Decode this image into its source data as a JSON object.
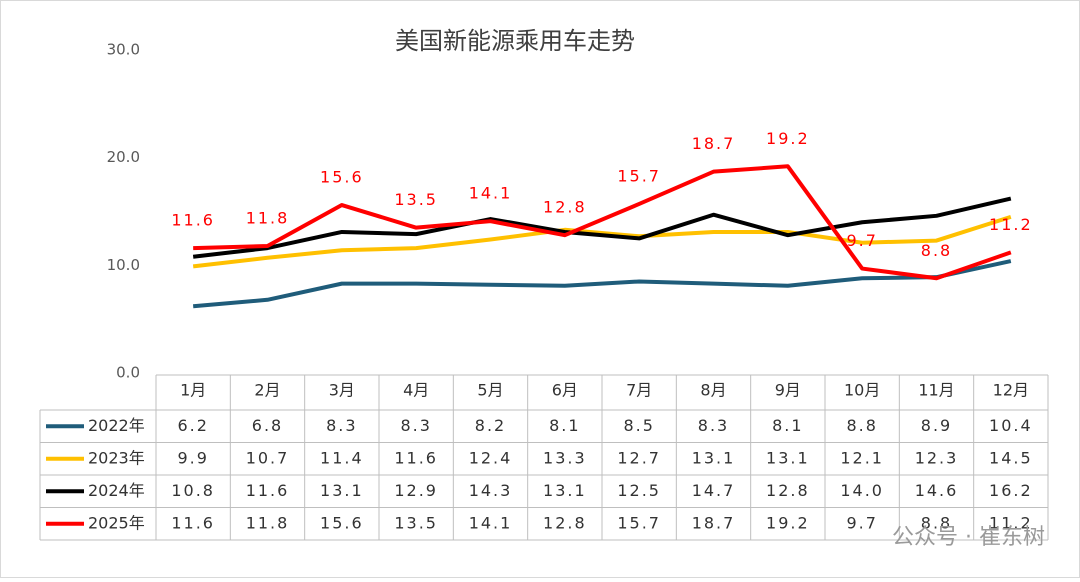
{
  "chart_data": {
    "type": "line",
    "title": "美国新能源乘用车走势",
    "categories": [
      "1月",
      "2月",
      "3月",
      "4月",
      "5月",
      "6月",
      "7月",
      "8月",
      "9月",
      "10月",
      "11月",
      "12月"
    ],
    "ylim": [
      0,
      30
    ],
    "yticks": [
      {
        "value": 0,
        "label": "0.0"
      },
      {
        "value": 10,
        "label": "10.0"
      },
      {
        "value": 20,
        "label": "20.0"
      },
      {
        "value": 30,
        "label": "30.0"
      }
    ],
    "grid": false,
    "data_labels_series": 3,
    "series": [
      {
        "name": "2022年",
        "color": "#1f5c7a",
        "values": [
          6.2,
          6.8,
          8.3,
          8.3,
          8.2,
          8.1,
          8.5,
          8.3,
          8.1,
          8.8,
          8.9,
          10.4
        ],
        "value_labels": [
          "6.2",
          "6.8",
          "8.3",
          "8.3",
          "8.2",
          "8.1",
          "8.5",
          "8.3",
          "8.1",
          "8.8",
          "8.9",
          "10.4"
        ]
      },
      {
        "name": "2023年",
        "color": "#ffc000",
        "values": [
          9.9,
          10.7,
          11.4,
          11.6,
          12.4,
          13.3,
          12.7,
          13.1,
          13.1,
          12.1,
          12.3,
          14.5
        ],
        "value_labels": [
          "9.9",
          "10.7",
          "11.4",
          "11.6",
          "12.4",
          "13.3",
          "12.7",
          "13.1",
          "13.1",
          "12.1",
          "12.3",
          "14.5"
        ]
      },
      {
        "name": "2024年",
        "color": "#000000",
        "values": [
          10.8,
          11.6,
          13.1,
          12.9,
          14.3,
          13.1,
          12.5,
          14.7,
          12.8,
          14.0,
          14.6,
          16.2
        ],
        "value_labels": [
          "10.8",
          "11.6",
          "13.1",
          "12.9",
          "14.3",
          "13.1",
          "12.5",
          "14.7",
          "12.8",
          "14.0",
          "14.6",
          "16.2"
        ]
      },
      {
        "name": "2025年",
        "color": "#ff0000",
        "values": [
          11.6,
          11.8,
          15.6,
          13.5,
          14.1,
          12.8,
          15.7,
          18.7,
          19.2,
          9.7,
          8.8,
          11.2
        ],
        "value_labels": [
          "11.6",
          "11.8",
          "15.6",
          "13.5",
          "14.1",
          "12.8",
          "15.7",
          "18.7",
          "19.2",
          "9.7",
          "8.8",
          "11.2"
        ]
      }
    ],
    "watermark": "公众号 · 崔东树"
  }
}
